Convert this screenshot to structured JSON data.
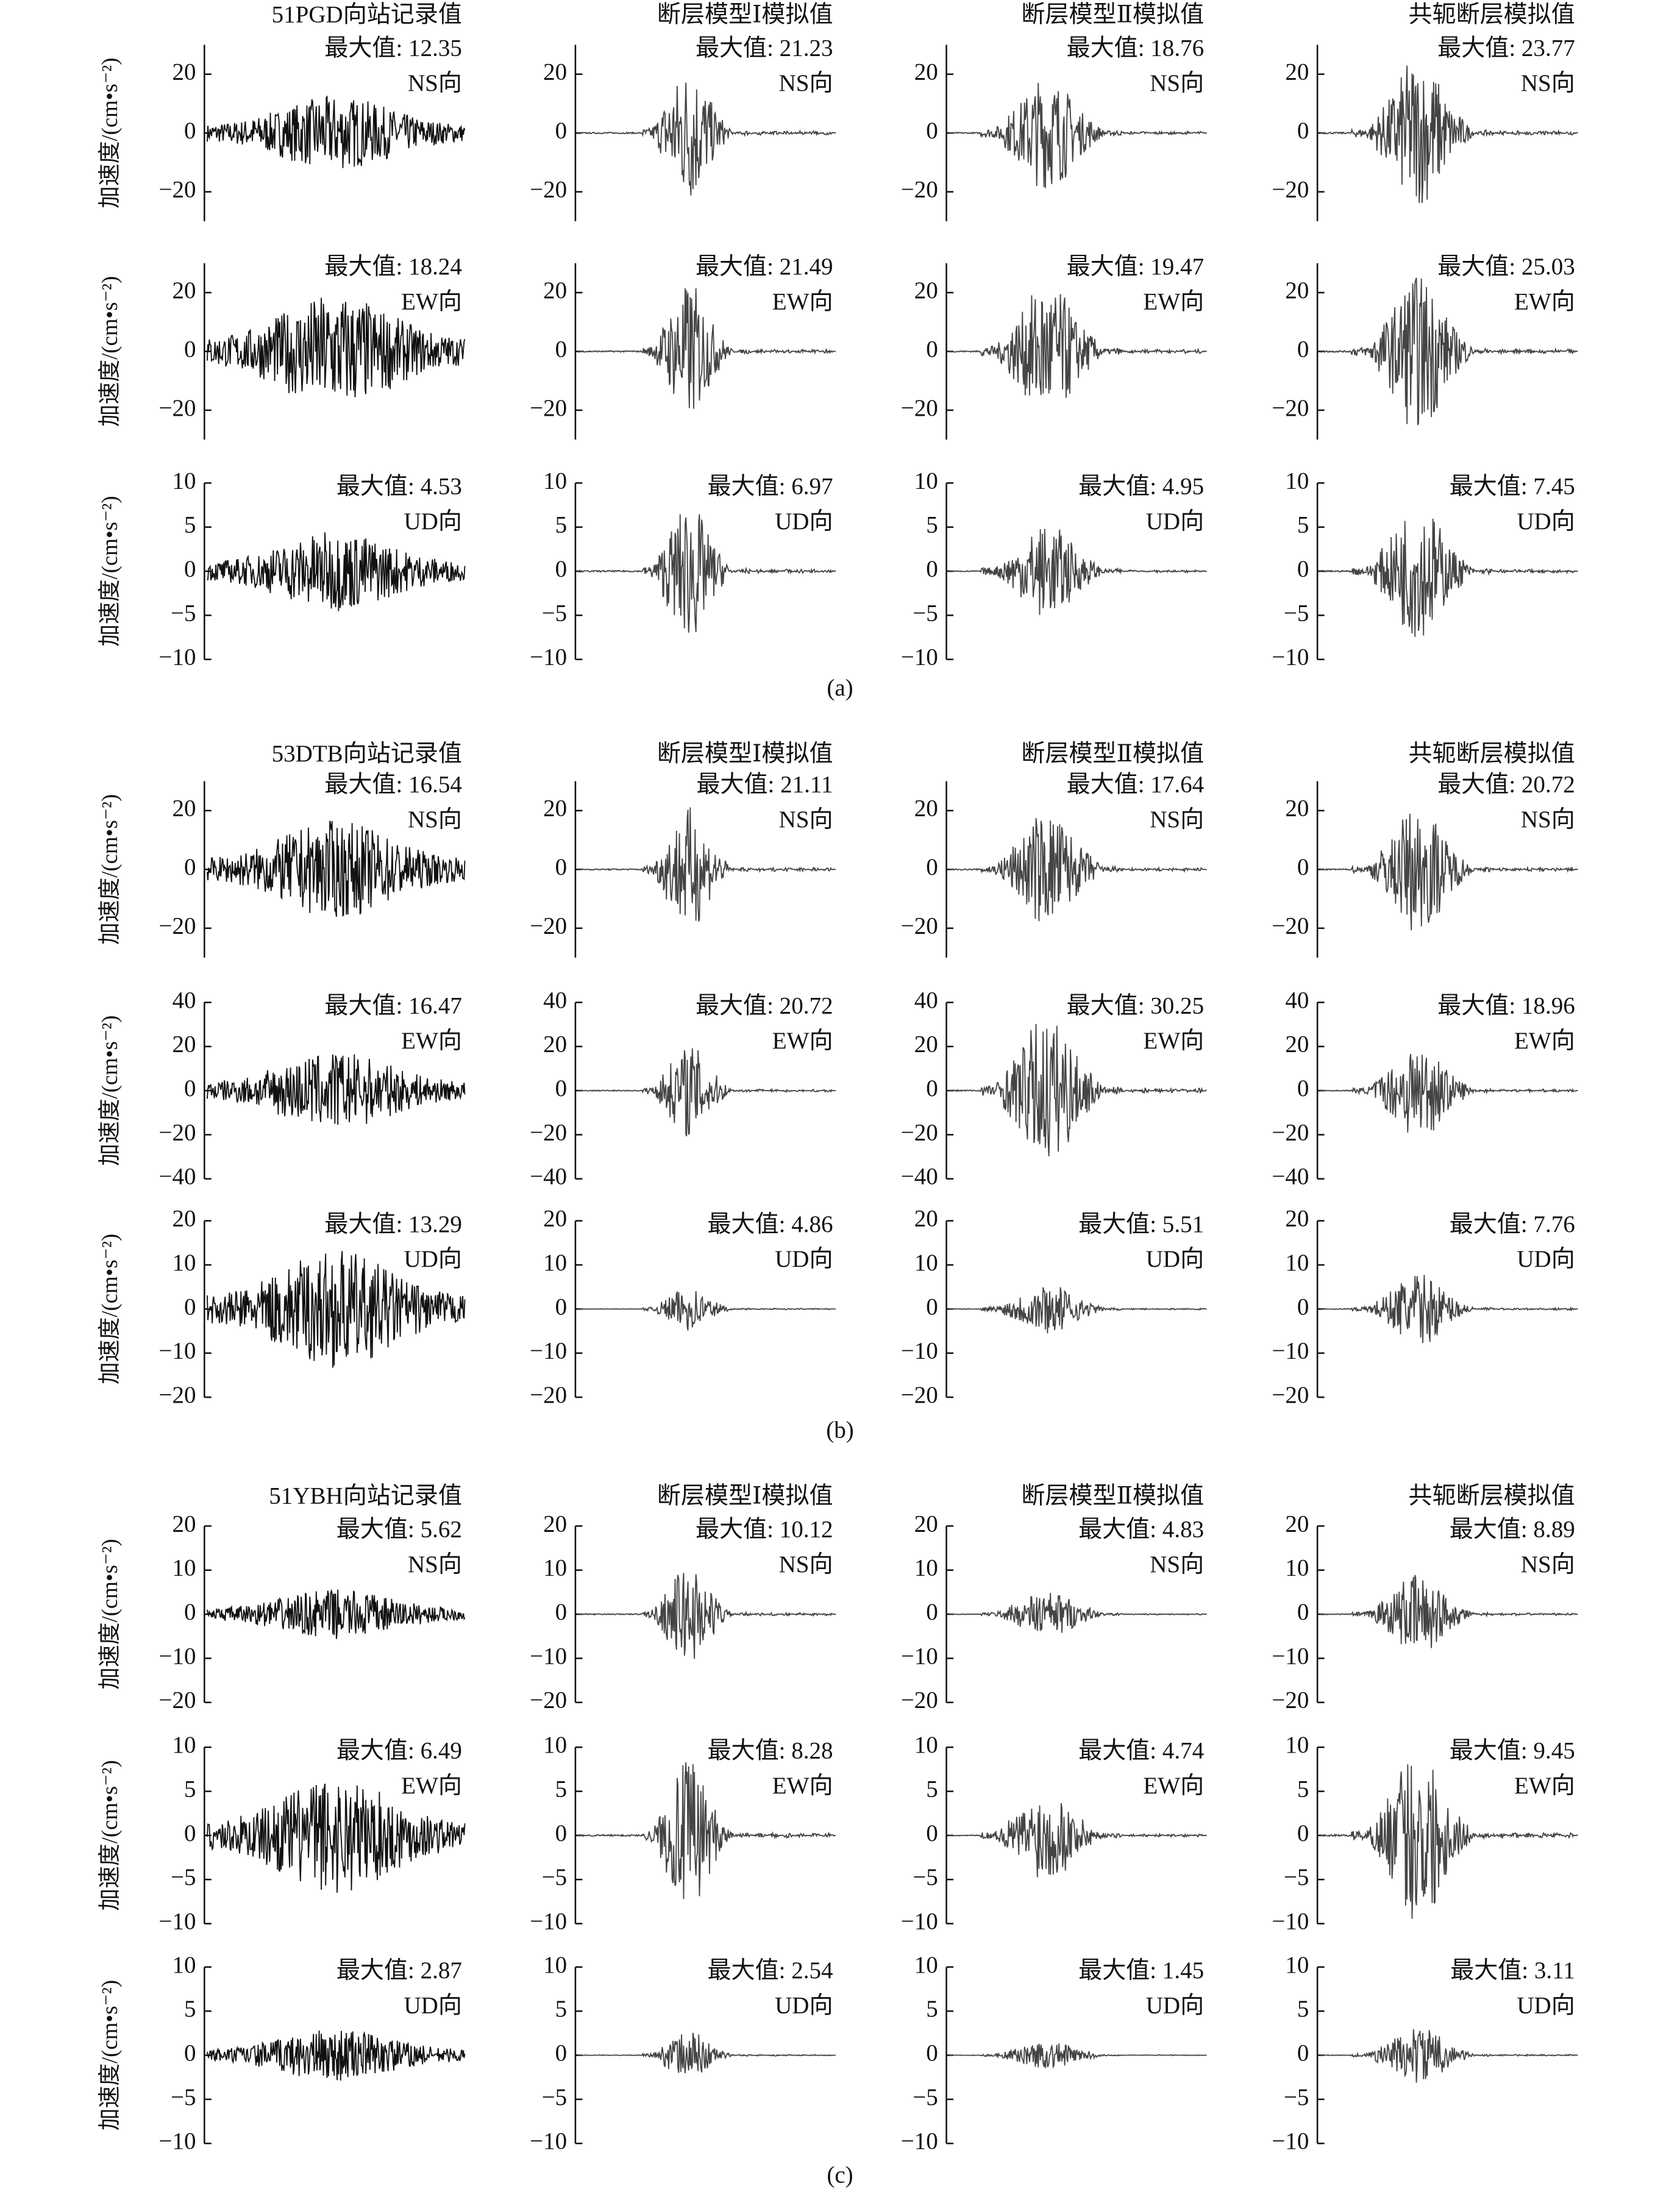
{
  "chart_data": {
    "type": "waveform-grid",
    "y_label": "加速度/(cm•s⁻²)",
    "groups": [
      {
        "panel_label": "(a)",
        "column_titles": [
          "51PGD向站记录值",
          "断层模型Ⅰ模拟值",
          "断层模型Ⅱ模拟值",
          "共轭断层模拟值"
        ],
        "rows": [
          {
            "direction": "NS向",
            "ylim": [
              -30,
              30
            ],
            "yticks": [
              20,
              0,
              {
                "value": -20,
                "label": "−20"
              }
            ],
            "values": [
              12.35,
              21.23,
              18.76,
              23.77
            ],
            "value_labels": [
              "最大值: 12.35",
              "最大值: 21.23",
              "最大值: 18.76",
              "最大值: 23.77"
            ]
          },
          {
            "direction": "EW向",
            "ylim": [
              -30,
              30
            ],
            "yticks": [
              20,
              0,
              {
                "value": -20,
                "label": "−20"
              }
            ],
            "values": [
              18.24,
              21.49,
              19.47,
              25.03
            ],
            "value_labels": [
              "最大值: 18.24",
              "最大值: 21.49",
              "最大值: 19.47",
              "最大值: 25.03"
            ]
          },
          {
            "direction": "UD向",
            "ylim": [
              -10,
              10
            ],
            "yticks": [
              10,
              5,
              0,
              {
                "value": -5,
                "label": "−5"
              },
              {
                "value": -10,
                "label": "−10"
              }
            ],
            "values": [
              4.53,
              6.97,
              4.95,
              7.45
            ],
            "value_labels": [
              "最大值: 4.53",
              "最大值: 6.97",
              "最大值: 4.95",
              "最大值: 7.45"
            ]
          }
        ]
      },
      {
        "panel_label": "(b)",
        "column_titles": [
          "53DTB向站记录值",
          "断层模型Ⅰ模拟值",
          "断层模型Ⅱ模拟值",
          "共轭断层模拟值"
        ],
        "rows": [
          {
            "direction": "NS向",
            "ylim": [
              -30,
              30
            ],
            "yticks": [
              20,
              0,
              {
                "value": -20,
                "label": "−20"
              }
            ],
            "values": [
              16.54,
              21.11,
              17.64,
              20.72
            ],
            "value_labels": [
              "最大值: 16.54",
              "最大值: 21.11",
              "最大值: 17.64",
              "最大值: 20.72"
            ]
          },
          {
            "direction": "EW向",
            "ylim": [
              -40,
              40
            ],
            "yticks": [
              40,
              20,
              0,
              {
                "value": -20,
                "label": "−20"
              },
              {
                "value": -40,
                "label": "−40"
              }
            ],
            "values": [
              16.47,
              20.72,
              30.25,
              18.96
            ],
            "value_labels": [
              "最大值: 16.47",
              "最大值: 20.72",
              "最大值: 30.25",
              "最大值: 18.96"
            ]
          },
          {
            "direction": "UD向",
            "ylim": [
              -20,
              20
            ],
            "yticks": [
              20,
              10,
              0,
              {
                "value": -10,
                "label": "−10"
              },
              {
                "value": -20,
                "label": "−20"
              }
            ],
            "values": [
              13.29,
              4.86,
              5.51,
              7.76
            ],
            "value_labels": [
              "最大值: 13.29",
              "最大值: 4.86",
              "最大值: 5.51",
              "最大值: 7.76"
            ]
          }
        ]
      },
      {
        "panel_label": "(c)",
        "column_titles": [
          "51YBH向站记录值",
          "断层模型Ⅰ模拟值",
          "断层模型Ⅱ模拟值",
          "共轭断层模拟值"
        ],
        "rows": [
          {
            "direction": "NS向",
            "ylim": [
              -20,
              20
            ],
            "yticks": [
              20,
              10,
              0,
              {
                "value": -10,
                "label": "−10"
              },
              {
                "value": -20,
                "label": "−20"
              }
            ],
            "values": [
              5.62,
              10.12,
              4.83,
              8.89
            ],
            "value_labels": [
              "最大值: 5.62",
              "最大值: 10.12",
              "最大值: 4.83",
              "最大值: 8.89"
            ]
          },
          {
            "direction": "EW向",
            "ylim": [
              -10,
              10
            ],
            "yticks": [
              10,
              5,
              0,
              {
                "value": -5,
                "label": "−5"
              },
              {
                "value": -10,
                "label": "−10"
              }
            ],
            "values": [
              6.49,
              8.28,
              4.74,
              9.45
            ],
            "value_labels": [
              "最大值: 6.49",
              "最大值: 8.28",
              "最大值: 4.74",
              "最大值: 9.45"
            ]
          },
          {
            "direction": "UD向",
            "ylim": [
              -10,
              10
            ],
            "yticks": [
              10,
              5,
              0,
              {
                "value": -5,
                "label": "−5"
              },
              {
                "value": -10,
                "label": "−10"
              }
            ],
            "values": [
              2.87,
              2.54,
              1.45,
              3.11
            ],
            "value_labels": [
              "最大值: 2.87",
              "最大值: 2.54",
              "最大值: 1.45",
              "最大值: 3.11"
            ]
          }
        ]
      }
    ]
  }
}
